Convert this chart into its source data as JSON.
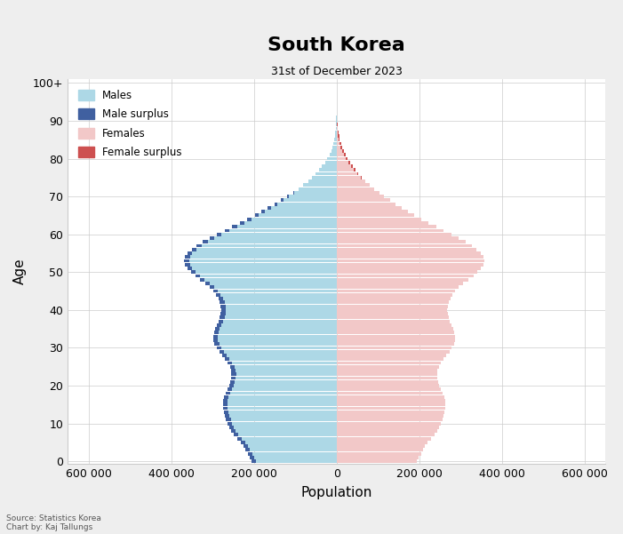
{
  "title": "South Korea",
  "subtitle": "31st of December 2023",
  "xlabel": "Population",
  "ylabel": "Age",
  "source_text": "Source: Statistics Korea\nChart by: Kaj Tallungs",
  "xlim": 650000,
  "background_color": "#eeeeee",
  "plot_background": "#ffffff",
  "male_color": "#add8e6",
  "male_surplus_color": "#4060a0",
  "female_color": "#f2c8c8",
  "female_surplus_color": "#cd5050",
  "ages": [
    0,
    1,
    2,
    3,
    4,
    5,
    6,
    7,
    8,
    9,
    10,
    11,
    12,
    13,
    14,
    15,
    16,
    17,
    18,
    19,
    20,
    21,
    22,
    23,
    24,
    25,
    26,
    27,
    28,
    29,
    30,
    31,
    32,
    33,
    34,
    35,
    36,
    37,
    38,
    39,
    40,
    41,
    42,
    43,
    44,
    45,
    46,
    47,
    48,
    49,
    50,
    51,
    52,
    53,
    54,
    55,
    56,
    57,
    58,
    59,
    60,
    61,
    62,
    63,
    64,
    65,
    66,
    67,
    68,
    69,
    70,
    71,
    72,
    73,
    74,
    75,
    76,
    77,
    78,
    79,
    80,
    81,
    82,
    83,
    84,
    85,
    86,
    87,
    88,
    89,
    90,
    91,
    92,
    93,
    94,
    95,
    96,
    97,
    98,
    99,
    100
  ],
  "males": [
    205000,
    210000,
    215000,
    220000,
    225000,
    232000,
    240000,
    248000,
    255000,
    260000,
    264000,
    267000,
    270000,
    272000,
    274000,
    275000,
    274000,
    272000,
    268000,
    264000,
    260000,
    257000,
    255000,
    254000,
    255000,
    258000,
    263000,
    270000,
    277000,
    284000,
    290000,
    295000,
    298000,
    298000,
    296000,
    293000,
    289000,
    285000,
    282000,
    280000,
    279000,
    280000,
    282000,
    286000,
    291000,
    298000,
    307000,
    318000,
    330000,
    342000,
    352000,
    360000,
    366000,
    368000,
    366000,
    360000,
    350000,
    338000,
    323000,
    306000,
    289000,
    270000,
    252000,
    234000,
    216000,
    198000,
    182000,
    166000,
    150000,
    134000,
    119000,
    105000,
    92000,
    80000,
    69000,
    59000,
    50000,
    42000,
    35000,
    28000,
    22000,
    17000,
    13000,
    10000,
    7500,
    5500,
    4000,
    2800,
    1900,
    1200,
    750,
    450,
    260,
    140,
    72,
    35,
    16,
    7,
    3,
    1,
    0
  ],
  "females": [
    194000,
    199000,
    204000,
    209000,
    214000,
    221000,
    229000,
    237000,
    244000,
    249000,
    253000,
    256000,
    259000,
    261000,
    263000,
    264000,
    263000,
    261000,
    257000,
    253000,
    249000,
    246000,
    244000,
    243000,
    244000,
    247000,
    252000,
    259000,
    266000,
    273000,
    279000,
    284000,
    287000,
    287000,
    285000,
    282000,
    278000,
    274000,
    271000,
    269000,
    268000,
    269000,
    271000,
    275000,
    280000,
    287000,
    296000,
    307000,
    319000,
    331000,
    341000,
    349000,
    355000,
    357000,
    355000,
    349000,
    339000,
    327000,
    312000,
    295000,
    278000,
    259000,
    241000,
    223000,
    205000,
    188000,
    173000,
    158000,
    143000,
    129000,
    115000,
    103000,
    91000,
    80000,
    70000,
    61000,
    53000,
    46000,
    39000,
    33000,
    27000,
    22000,
    17000,
    13500,
    10500,
    8200,
    6300,
    4800,
    3500,
    2500,
    1700,
    1100,
    700,
    420,
    240,
    130,
    65,
    30,
    12,
    4,
    1
  ]
}
